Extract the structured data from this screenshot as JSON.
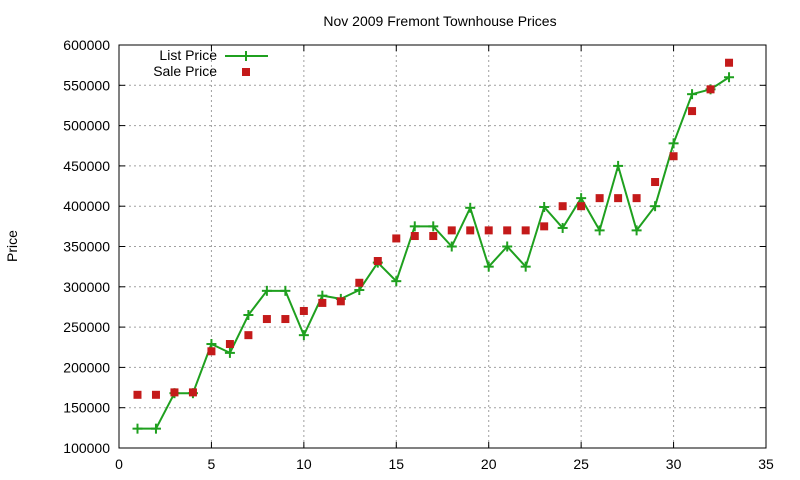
{
  "chart_data": {
    "type": "line",
    "title": "Nov 2009 Fremont Townhouse Prices",
    "xlabel": "",
    "ylabel": "Price",
    "xlim": [
      0,
      35
    ],
    "ylim": [
      100000,
      600000
    ],
    "x_ticks": [
      0,
      5,
      10,
      15,
      20,
      25,
      30,
      35
    ],
    "y_ticks": [
      100000,
      150000,
      200000,
      250000,
      300000,
      350000,
      400000,
      450000,
      500000,
      550000,
      600000
    ],
    "grid": true,
    "legend_position": "top-left",
    "series": [
      {
        "name": "List Price",
        "style": "line-points",
        "marker": "plus",
        "color": "#1fa01f",
        "x": [
          1,
          2,
          3,
          4,
          5,
          6,
          7,
          8,
          9,
          10,
          11,
          12,
          13,
          14,
          15,
          16,
          17,
          18,
          19,
          20,
          21,
          22,
          23,
          24,
          25,
          26,
          27,
          28,
          29,
          30,
          31,
          32,
          33
        ],
        "values": [
          124000,
          124000,
          168000,
          168000,
          229000,
          218000,
          265000,
          295000,
          295000,
          240000,
          289000,
          285000,
          296000,
          330000,
          307000,
          375000,
          375000,
          350000,
          398000,
          325000,
          350000,
          325000,
          399000,
          373000,
          410000,
          370000,
          450000,
          370000,
          400000,
          478000,
          539000,
          545000,
          560000
        ]
      },
      {
        "name": "Sale Price",
        "style": "points",
        "marker": "square",
        "color": "#c41a1a",
        "x": [
          1,
          2,
          3,
          4,
          5,
          6,
          7,
          8,
          9,
          10,
          11,
          12,
          13,
          14,
          15,
          16,
          17,
          18,
          19,
          20,
          21,
          22,
          23,
          24,
          25,
          26,
          27,
          28,
          29,
          30,
          31,
          32,
          33
        ],
        "values": [
          166000,
          166000,
          169000,
          169000,
          220000,
          229000,
          240000,
          260000,
          260000,
          270000,
          280000,
          282000,
          305000,
          332000,
          360000,
          363000,
          363000,
          370000,
          370000,
          370000,
          370000,
          370000,
          375000,
          400000,
          400000,
          410000,
          410000,
          410000,
          430000,
          462000,
          518000,
          545000,
          578000
        ]
      }
    ]
  }
}
